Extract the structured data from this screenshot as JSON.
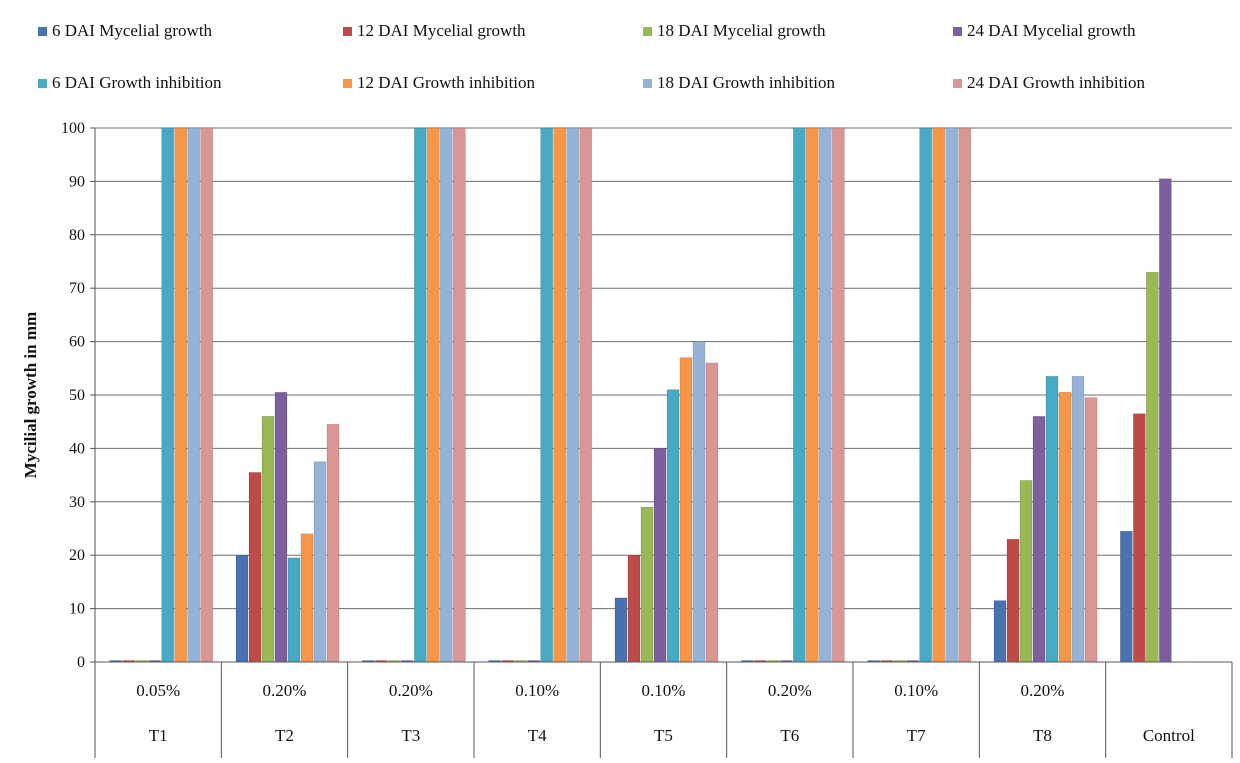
{
  "chart_data": {
    "type": "bar",
    "title": "",
    "xlabel": "",
    "ylabel": "Mycilial growth in mm",
    "ylim": [
      0,
      100
    ],
    "yticks": [
      0,
      10,
      20,
      30,
      40,
      50,
      60,
      70,
      80,
      90,
      100
    ],
    "grid": true,
    "legend_position": "top",
    "categories": [
      "T1",
      "T2",
      "T3",
      "T4",
      "T5",
      "T6",
      "T7",
      "T8",
      "Control"
    ],
    "concentrations": [
      "0.05%",
      "0.20%",
      "0.20%",
      "0.10%",
      "0.10%",
      "0.20%",
      "0.10%",
      "0.20%",
      ""
    ],
    "series": [
      {
        "name": "6 DAI Mycelial growth",
        "color": "#4a72b0",
        "values": [
          0,
          20,
          0,
          0,
          12,
          0,
          0,
          11.5,
          24.5
        ]
      },
      {
        "name": "12 DAI Mycelial growth",
        "color": "#be4b48",
        "values": [
          0,
          35.5,
          0,
          0,
          20,
          0,
          0,
          23,
          46.5
        ]
      },
      {
        "name": "18 DAI Mycelial growth",
        "color": "#98b954",
        "values": [
          0,
          46,
          0,
          0,
          29,
          0,
          0,
          34,
          73
        ]
      },
      {
        "name": "24 DAI  Mycelial growth",
        "color": "#7d5fa0",
        "values": [
          0,
          50.5,
          0,
          0,
          40,
          0,
          0,
          46,
          90.5
        ]
      },
      {
        "name": "6 DAI Growth inhibition",
        "color": "#46aac5",
        "values": [
          100,
          19.5,
          100,
          100,
          51,
          100,
          100,
          53.5,
          null
        ]
      },
      {
        "name": "12 DAI Growth inhibition",
        "color": "#f79646",
        "values": [
          100,
          24,
          100,
          100,
          57,
          100,
          100,
          50.5,
          null
        ]
      },
      {
        "name": "18 DAI Growth inhibition",
        "color": "#95b3d7",
        "values": [
          100,
          37.5,
          100,
          100,
          60,
          100,
          100,
          53.5,
          null
        ]
      },
      {
        "name": "24 DAI Growth inhibition",
        "color": "#d99694",
        "values": [
          100,
          44.5,
          100,
          100,
          56,
          100,
          100,
          49.5,
          null
        ]
      }
    ]
  }
}
